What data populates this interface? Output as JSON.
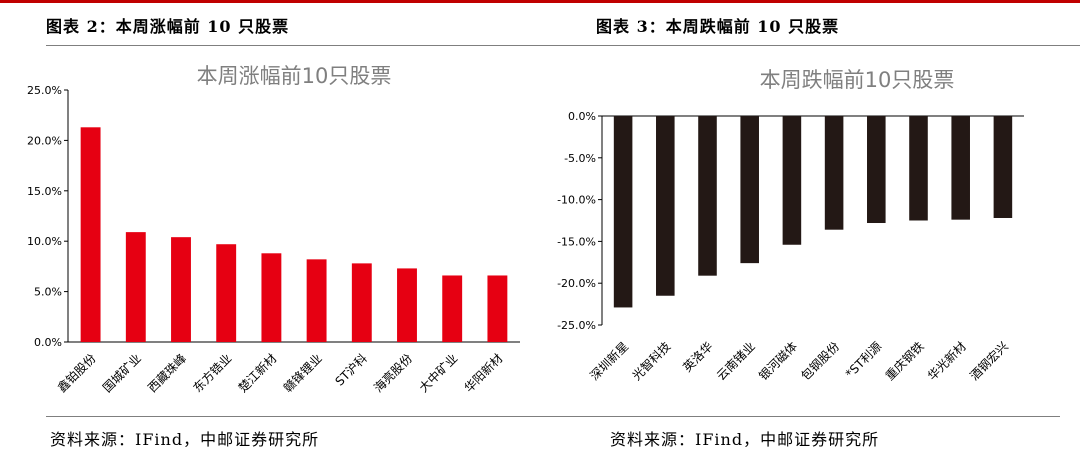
{
  "colors": {
    "accent": "#c00000",
    "gain_bar": "#e60012",
    "loss_bar": "#231815"
  },
  "panels": {
    "left": {
      "fig_title": "图表 2：本周涨幅前 10 只股票",
      "source": "资料来源：IFind，中邮证券研究所"
    },
    "right": {
      "fig_title": "图表 3：本周跌幅前 10 只股票",
      "source": "资料来源：IFind，中邮证券研究所"
    }
  },
  "chart_data": [
    {
      "type": "bar",
      "title": "本周涨幅前10只股票",
      "categories": [
        "鑫铂股份",
        "国城矿业",
        "西藏珠峰",
        "东方锆业",
        "楚江新材",
        "赣锋锂业",
        "ST沪科",
        "海亮股份",
        "大中矿业",
        "华阳新材"
      ],
      "values": [
        21.3,
        10.9,
        10.4,
        9.7,
        8.8,
        8.2,
        7.8,
        7.3,
        6.6,
        6.6
      ],
      "ylim": [
        0,
        25
      ],
      "yticks": [
        "0.0%",
        "5.0%",
        "10.0%",
        "15.0%",
        "20.0%",
        "25.0%"
      ],
      "grid": false
    },
    {
      "type": "bar",
      "title": "本周跌幅前10只股票",
      "categories": [
        "深圳新星",
        "光智科技",
        "英洛华",
        "云南锗业",
        "银河磁体",
        "包钢股份",
        "*ST利源",
        "重庆钢铁",
        "华光新材",
        "酒钢宏兴"
      ],
      "values": [
        -22.9,
        -21.5,
        -19.1,
        -17.6,
        -15.4,
        -13.6,
        -12.8,
        -12.5,
        -12.4,
        -12.2
      ],
      "ylim": [
        -25,
        0
      ],
      "yticks": [
        "0.0%",
        "-5.0%",
        "-10.0%",
        "-15.0%",
        "-20.0%",
        "-25.0%"
      ],
      "grid": false
    }
  ]
}
